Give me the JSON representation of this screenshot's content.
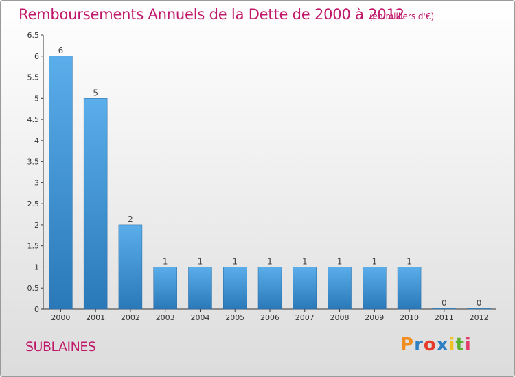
{
  "header": {
    "title": "Remboursements Annuels de la Dette de 2000 à 2012",
    "subtitle": "(en milliers d'€)"
  },
  "footer": {
    "commune": "SUBLAINES",
    "logo_letters": [
      "P",
      "r",
      "o",
      "x",
      "i",
      "t",
      "i"
    ],
    "logo_colors": [
      "#f28c1e",
      "#2e7fc1",
      "#e63a2a",
      "#2e7fc1",
      "#f2c01e",
      "#5cb030",
      "#e63a6a"
    ]
  },
  "chart_data": {
    "type": "bar",
    "categories": [
      "2000",
      "2001",
      "2002",
      "2003",
      "2004",
      "2005",
      "2006",
      "2007",
      "2008",
      "2009",
      "2010",
      "2011",
      "2012"
    ],
    "values": [
      6,
      5,
      2,
      1,
      1,
      1,
      1,
      1,
      1,
      1,
      1,
      0,
      0
    ],
    "data_labels": [
      "6",
      "5",
      "2",
      "1",
      "1",
      "1",
      "1",
      "1",
      "1",
      "1",
      "1",
      "0",
      "0"
    ],
    "y_ticks": [
      "0",
      "0.5",
      "1",
      "1.5",
      "2",
      "2.5",
      "3",
      "3.5",
      "4",
      "4.5",
      "5",
      "5.5",
      "6",
      "6.5"
    ],
    "ylim": [
      0,
      6.5
    ],
    "grid": false,
    "colors": {
      "bar_top": "#5aaeea",
      "bar_bottom": "#2a78b8",
      "axis": "#333333"
    }
  }
}
